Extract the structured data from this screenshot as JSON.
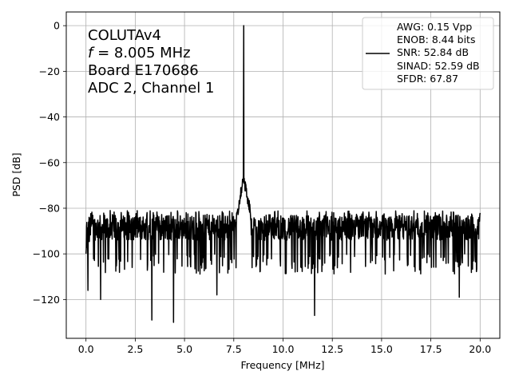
{
  "chart_data": {
    "type": "line",
    "title": "",
    "xlabel": "Frequency [MHz]",
    "ylabel": "PSD [dB]",
    "xlim": [
      -1.0,
      21.0
    ],
    "ylim": [
      -137,
      6
    ],
    "xticks": [
      0.0,
      2.5,
      5.0,
      7.5,
      10.0,
      12.5,
      15.0,
      17.5,
      20.0
    ],
    "xtick_labels": [
      "0.0",
      "2.5",
      "5.0",
      "7.5",
      "10.0",
      "12.5",
      "15.0",
      "17.5",
      "20.0"
    ],
    "yticks": [
      0,
      -20,
      -40,
      -60,
      -80,
      -100,
      -120
    ],
    "ytick_labels": [
      "0",
      "−20",
      "−40",
      "−60",
      "−80",
      "−100",
      "−120"
    ],
    "grid": true,
    "legend_position": "top-right",
    "annotation": {
      "lines": [
        {
          "text": "COLUTAv4"
        },
        {
          "italic": "f",
          "text": " = 8.005 MHz"
        },
        {
          "text": "Board E170686"
        },
        {
          "text": "ADC 2, Channel 1"
        }
      ]
    },
    "legend": {
      "lines": [
        "AWG: 0.15 Vpp",
        "ENOB: 8.44 bits",
        "SNR: 52.84 dB",
        "SINAD: 52.59 dB",
        "SFDR: 67.87"
      ]
    },
    "series": [
      {
        "color": "#000000",
        "signal_frequency_mhz": 8.005,
        "peak_db": 0,
        "noise_floor_db": [
          -100,
          -83
        ],
        "spurs": [
          {
            "x": 0.1,
            "y": -116
          },
          {
            "x": 0.75,
            "y": -120
          },
          {
            "x": 3.35,
            "y": -129
          },
          {
            "x": 4.45,
            "y": -130
          },
          {
            "x": 6.65,
            "y": -118
          },
          {
            "x": 11.6,
            "y": -127
          },
          {
            "x": 18.95,
            "y": -119
          }
        ]
      }
    ]
  }
}
